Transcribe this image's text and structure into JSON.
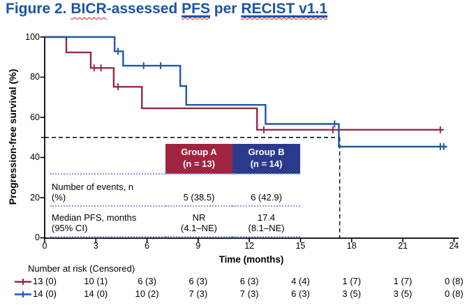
{
  "title": {
    "part1": "Figure 2. ",
    "bicr": "BICR",
    "part2": "-assessed ",
    "pfs": "PFS",
    "part3": " per ",
    "recist": "RECIST v1.1"
  },
  "colors": {
    "title_blue": "#1C54A8",
    "spellcheck_red": "#E1151C",
    "group_a_red": "#97293F",
    "group_b_blue": "#1A5AA5",
    "header_a_bg": "#A02440",
    "header_b_bg": "#2B3A8C",
    "dotted_rule_blue": "#7FA3DC",
    "reference_dash_black": "#000000"
  },
  "stats_table": {
    "headers": [
      "Group A\n(n = 13)",
      "Group B\n(n = 14)"
    ],
    "rows": [
      {
        "label": "Number of events, n\n(%)",
        "group_a": "5 (38.5)",
        "group_b": "6 (42.9)"
      },
      {
        "label": "Median PFS, months\n(95% CI)",
        "group_a": "NR\n(4.1–NE)",
        "group_b": "17.4\n(8.1–NE)"
      }
    ]
  },
  "risk_table": {
    "title": "Number at risk (Censored)",
    "time_points": [
      0,
      3,
      6,
      9,
      12,
      15,
      18,
      21,
      24
    ],
    "rows": [
      {
        "name": "Group A",
        "values": [
          "13 (0)",
          "10 (1)",
          "6 (3)",
          "6 (3)",
          "6 (3)",
          "4 (4)",
          "1 (7)",
          "1 (7)",
          "0 (8)"
        ]
      },
      {
        "name": "Group B",
        "values": [
          "14 (0)",
          "14 (0)",
          "10 (2)",
          "7 (3)",
          "7 (3)",
          "6 (3)",
          "3 (5)",
          "3 (5)",
          "0 (8)"
        ]
      }
    ]
  },
  "chart_data": {
    "type": "line",
    "subtype": "kaplan-meier-step",
    "title": "Figure 2. BICR-assessed PFS per RECIST v1.1",
    "xlabel": "Time (months)",
    "ylabel": "Progression-free survival (%)",
    "xlim": [
      0,
      24
    ],
    "ylim": [
      0,
      100
    ],
    "xticks": [
      0,
      3,
      6,
      9,
      12,
      15,
      18,
      21,
      24
    ],
    "yticks": [
      0,
      20,
      40,
      60,
      80,
      100
    ],
    "grid": false,
    "reference_lines": {
      "horizontal_pct": 50,
      "vertical_months": 17.3
    },
    "series": [
      {
        "name": "Group A (n = 13)",
        "color": "#97293F",
        "steps": [
          [
            0,
            100
          ],
          [
            1.27,
            100
          ],
          [
            1.27,
            92.3
          ],
          [
            2.7,
            92.3
          ],
          [
            2.7,
            84.6
          ],
          [
            4.05,
            84.6
          ],
          [
            4.05,
            75.2
          ],
          [
            5.7,
            75.2
          ],
          [
            5.7,
            64.5
          ],
          [
            12.45,
            64.5
          ],
          [
            12.45,
            53.8
          ],
          [
            23.4,
            53.8
          ]
        ],
        "censor_marks": [
          [
            2.9,
            84.6
          ],
          [
            3.3,
            84.6
          ],
          [
            4.3,
            75.2
          ],
          [
            12.85,
            53.8
          ],
          [
            16.9,
            53.8
          ],
          [
            23.2,
            53.8
          ]
        ]
      },
      {
        "name": "Group B (n = 14)",
        "color": "#1A5AA5",
        "steps": [
          [
            0,
            100
          ],
          [
            4.1,
            100
          ],
          [
            4.1,
            92.9
          ],
          [
            4.6,
            92.9
          ],
          [
            4.6,
            85.7
          ],
          [
            7.95,
            85.7
          ],
          [
            7.95,
            75.6
          ],
          [
            8.3,
            75.6
          ],
          [
            8.3,
            66.2
          ],
          [
            12.95,
            66.2
          ],
          [
            12.95,
            56.7
          ],
          [
            17.25,
            56.7
          ],
          [
            17.25,
            45.4
          ],
          [
            23.6,
            45.4
          ]
        ],
        "censor_marks": [
          [
            4.3,
            92.9
          ],
          [
            5.8,
            85.7
          ],
          [
            6.8,
            85.7
          ],
          [
            17.0,
            56.7
          ],
          [
            23.2,
            45.4
          ],
          [
            23.4,
            45.4
          ]
        ]
      }
    ]
  }
}
